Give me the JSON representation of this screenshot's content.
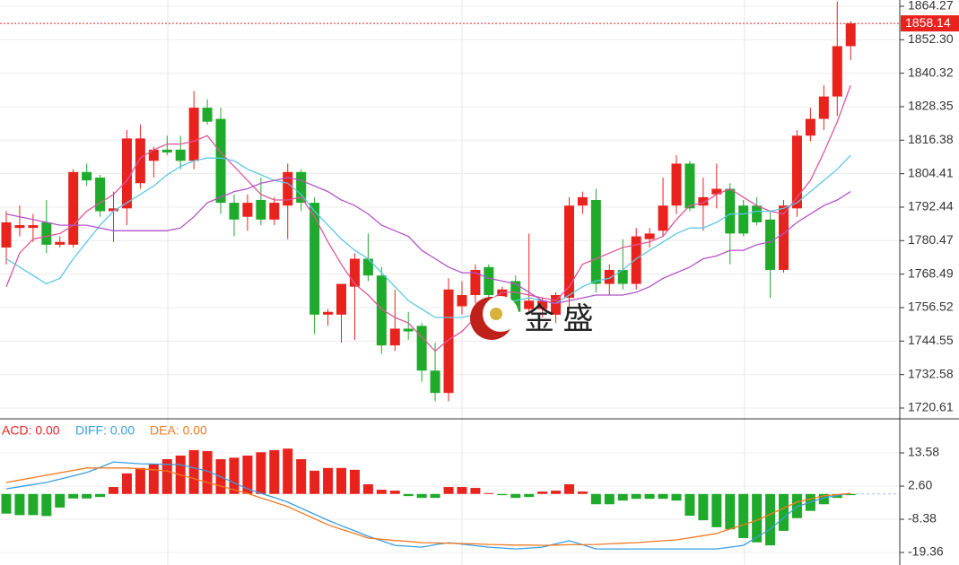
{
  "chart_data": [
    {
      "type": "candlestick",
      "up_color": "#e8231e",
      "down_color": "#1faa2b",
      "open": [
        1778,
        1785,
        1785,
        1787,
        1779,
        1779,
        1805,
        1803,
        1791,
        1792,
        1801,
        1809,
        1813,
        1813,
        1809,
        1828,
        1824,
        1794,
        1789,
        1795,
        1788,
        1793,
        1805,
        1794,
        1754,
        1754,
        1764,
        1774,
        1768,
        1743,
        1749,
        1750,
        1734,
        1726,
        1757,
        1761,
        1771,
        1759,
        1766,
        1756,
        1756,
        1754,
        1760,
        1793,
        1795,
        1765,
        1770,
        1765,
        1781,
        1784,
        1793,
        1808,
        1793,
        1797,
        1799,
        1793,
        1793,
        1788,
        1770,
        1792,
        1818,
        1824,
        1832,
        1850
      ],
      "high": [
        1791,
        1793,
        1790,
        1795,
        1782,
        1806,
        1808,
        1804,
        1798,
        1820,
        1822,
        1814,
        1818,
        1818,
        1834,
        1831,
        1828,
        1797,
        1797,
        1803,
        1796,
        1808,
        1806,
        1796,
        1756,
        1764,
        1776,
        1783,
        1771,
        1763,
        1755,
        1751,
        1744,
        1767,
        1766,
        1772,
        1772,
        1764,
        1768,
        1783,
        1760,
        1762,
        1796,
        1798,
        1799,
        1772,
        1781,
        1785,
        1785,
        1803,
        1811,
        1809,
        1803,
        1808,
        1801,
        1795,
        1796,
        1791,
        1795,
        1820,
        1828,
        1836,
        1866,
        1859
      ],
      "low": [
        1772,
        1782,
        1780,
        1776,
        1778,
        1778,
        1800,
        1789,
        1780,
        1786,
        1799,
        1803,
        1811,
        1806,
        1806,
        1822,
        1790,
        1782,
        1784,
        1786,
        1786,
        1781,
        1791,
        1747,
        1750,
        1744,
        1745,
        1766,
        1740,
        1741,
        1745,
        1730,
        1723,
        1723,
        1754,
        1758,
        1759,
        1754,
        1754,
        1755,
        1753,
        1751,
        1756,
        1790,
        1762,
        1761,
        1763,
        1763,
        1778,
        1782,
        1790,
        1791,
        1784,
        1792,
        1772,
        1782,
        1786,
        1760,
        1769,
        1789,
        1816,
        1820,
        1825,
        1845
      ],
      "close": [
        1787,
        1786,
        1786,
        1779,
        1780,
        1805,
        1802,
        1791,
        1792,
        1817,
        1817,
        1813,
        1812,
        1809,
        1828,
        1823,
        1794,
        1788,
        1794,
        1788,
        1794,
        1805,
        1794,
        1754,
        1755,
        1765,
        1774,
        1768,
        1743,
        1749,
        1748,
        1734,
        1726,
        1763,
        1761,
        1770,
        1761,
        1763,
        1755,
        1759,
        1759,
        1761,
        1793,
        1796,
        1765,
        1770,
        1765,
        1782,
        1783,
        1793,
        1808,
        1792,
        1796,
        1799,
        1783,
        1783,
        1787,
        1770,
        1793,
        1818,
        1824,
        1832,
        1850,
        1858.14
      ],
      "series": [
        {
          "color": "#e0559a",
          "values": [
            1764,
            1776,
            1781,
            1782,
            1783,
            1786,
            1791,
            1794,
            1797,
            1802,
            1810,
            1813,
            1815,
            1815,
            1816,
            1818,
            1812,
            1807,
            1802,
            1797,
            1795,
            1795,
            1796,
            1789,
            1780,
            1772,
            1765,
            1761,
            1756,
            1753,
            1751,
            1746,
            1741,
            1745,
            1748,
            1753,
            1759,
            1762,
            1762,
            1761,
            1760,
            1759,
            1764,
            1772,
            1774,
            1776,
            1778,
            1779,
            1780,
            1782,
            1788,
            1793,
            1794,
            1797,
            1799,
            1796,
            1793,
            1791,
            1790,
            1796,
            1802,
            1812,
            1823,
            1836
          ]
        },
        {
          "color": "#5cc6e6",
          "values": [
            1774,
            1771,
            1768,
            1765,
            1767,
            1774,
            1780,
            1786,
            1791,
            1794,
            1797,
            1800,
            1804,
            1807,
            1809,
            1810,
            1810,
            1809,
            1806,
            1804,
            1802,
            1801,
            1797,
            1791,
            1786,
            1781,
            1777,
            1774,
            1769,
            1764,
            1759,
            1756,
            1753,
            1753,
            1753,
            1754,
            1756,
            1758,
            1759,
            1760,
            1759,
            1758,
            1761,
            1764,
            1766,
            1767,
            1770,
            1774,
            1777,
            1780,
            1783,
            1785,
            1785,
            1787,
            1790,
            1790,
            1791,
            1791,
            1792,
            1794,
            1798,
            1802,
            1806,
            1811
          ]
        },
        {
          "color": "#b452c8",
          "values": [
            1790,
            1789,
            1788,
            1787,
            1786,
            1786,
            1786,
            1785,
            1784,
            1784,
            1784,
            1784,
            1784,
            1785,
            1789,
            1794,
            1796,
            1798,
            1799,
            1801,
            1802,
            1803,
            1802,
            1800,
            1798,
            1795,
            1793,
            1790,
            1786,
            1784,
            1782,
            1777,
            1774,
            1771,
            1769,
            1769,
            1767,
            1766,
            1765,
            1762,
            1759,
            1758,
            1759,
            1760,
            1761,
            1761,
            1761,
            1762,
            1764,
            1767,
            1769,
            1771,
            1774,
            1775,
            1777,
            1777,
            1779,
            1780,
            1783,
            1787,
            1790,
            1793,
            1795,
            1798
          ]
        }
      ],
      "current_price": 1858.14,
      "current_color": "#e8231e",
      "ylim": [
        1717.4,
        1866.5
      ],
      "yticks": [
        1864.27,
        {
          "value": 1852.3,
          "label": "1852.30"
        },
        1840.32,
        1828.35,
        1816.38,
        1804.41,
        1792.44,
        1780.47,
        1768.49,
        1756.52,
        1744.55,
        1732.58,
        1720.61
      ],
      "grid": true,
      "logo": "金 盛"
    },
    {
      "type": "bar",
      "series": [
        {
          "legend": "ACD: 0.00",
          "color": "#e8231e",
          "down_color": "#1faa2b",
          "values": [
            -6.5,
            -7,
            -7,
            -7.3,
            -4.5,
            -1.5,
            -1.5,
            -1,
            2.3,
            6.8,
            8.6,
            9.8,
            11.5,
            12.7,
            14.5,
            14.2,
            11.5,
            12,
            12.7,
            13.8,
            14.5,
            15,
            11.5,
            7.7,
            8.6,
            8.6,
            8,
            3.2,
            1.4,
            1.1,
            -0.7,
            -1.3,
            -1.3,
            2.3,
            2.3,
            2,
            0.3,
            -0.4,
            -1.3,
            -1,
            0.8,
            1.1,
            3.2,
            0.8,
            -3.4,
            -3.4,
            -2.2,
            -1.6,
            -1.6,
            -1.6,
            -2.2,
            -7.2,
            -8.7,
            -11,
            -11.7,
            -14.6,
            -16,
            -17,
            -12.2,
            -8,
            -5.6,
            -3.4,
            -1.3,
            -0.4
          ]
        },
        {
          "legend": "DIFF: 0.00",
          "color": "#3a9ee0",
          "values": [
            1.7,
            2.4,
            3.1,
            3.8,
            4.9,
            6,
            7.1,
            8.8,
            10.6,
            10.3,
            10,
            9.9,
            9.8,
            9.7,
            8.6,
            7.6,
            5.7,
            3.7,
            1.7,
            0.2,
            -1.2,
            -2.7,
            -4.7,
            -6.7,
            -8.7,
            -10.5,
            -12.2,
            -14,
            -15.5,
            -17,
            -17.3,
            -17.6,
            -16.8,
            -16.1,
            -16.6,
            -17.1,
            -17.6,
            -17.9,
            -18.2,
            -17.9,
            -17.6,
            -16.5,
            -15.5,
            -16.8,
            -18.2,
            -18.2,
            -18.2,
            -18.2,
            -18.2,
            -18.2,
            -18.2,
            -18.2,
            -18.2,
            -18.2,
            -17.6,
            -17,
            -14.3,
            -11.6,
            -7.9,
            -4.2,
            -2.7,
            -1.3,
            -0.5,
            0.2
          ]
        },
        {
          "legend": "DEA: 0.00",
          "color": "#f07a22",
          "values": [
            3.8,
            4.6,
            5.4,
            6.2,
            7,
            7.8,
            8.6,
            8.6,
            8.6,
            8.6,
            8.3,
            8,
            7.6,
            6.3,
            5.1,
            3.8,
            2.6,
            1.4,
            0.2,
            -1.3,
            -2.7,
            -4.2,
            -6.2,
            -8.2,
            -10.2,
            -11.7,
            -13.1,
            -14.6,
            -15,
            -15.4,
            -15.7,
            -16.1,
            -16.2,
            -16.3,
            -16.4,
            -16.5,
            -16.7,
            -16.8,
            -16.9,
            -16.9,
            -17,
            -16.9,
            -16.8,
            -16.8,
            -16.7,
            -16.5,
            -16.3,
            -16.1,
            -15.8,
            -15.5,
            -15.2,
            -14.5,
            -13.8,
            -13.1,
            -11.6,
            -10.2,
            -8.7,
            -6.7,
            -4.7,
            -2.7,
            -1.7,
            -0.6,
            -0.2,
            0.2
          ]
        }
      ],
      "ylim": [
        -23.5,
        24.56
      ],
      "yticks": [
        13.58,
        {
          "value": 2.6,
          "label": "2.60"
        },
        -8.38,
        -19.36
      ]
    }
  ]
}
